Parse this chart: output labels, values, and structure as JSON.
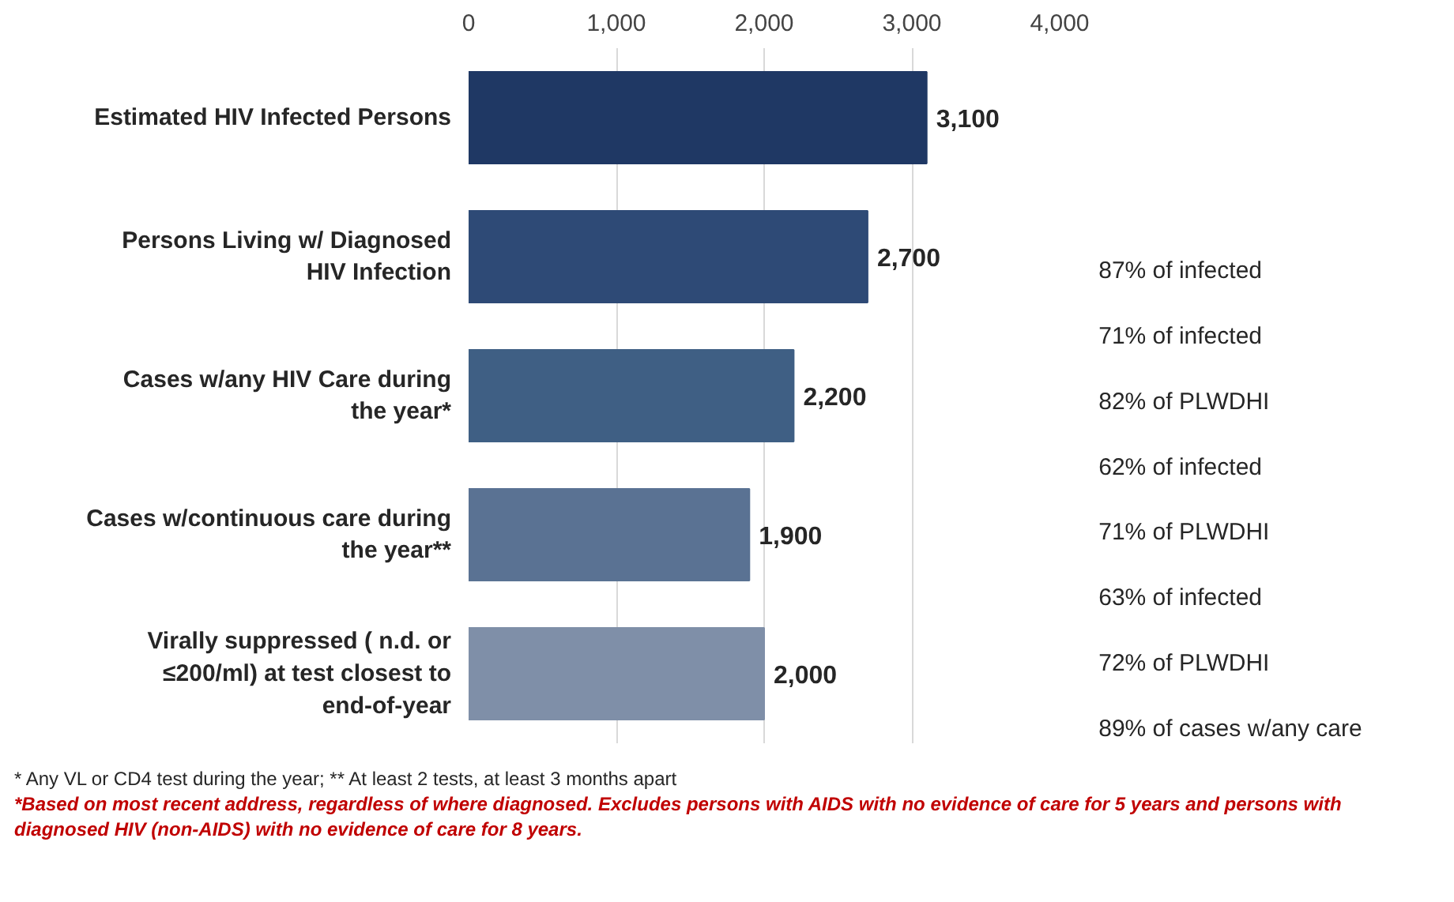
{
  "chart_data": {
    "type": "bar",
    "orientation": "horizontal",
    "categories": [
      "Estimated HIV Infected Persons",
      "Persons Living w/ Diagnosed HIV Infection",
      "Cases w/any HIV Care during the year*",
      "Cases w/continuous care during the year**",
      "Virally suppressed ( n.d. or ≤200/ml) at test closest to end-of-year"
    ],
    "values": [
      3100,
      2700,
      2200,
      1900,
      2000
    ],
    "colors": [
      "#1f3864",
      "#2e4a76",
      "#3f5f84",
      "#5a7293",
      "#7f8fa8"
    ],
    "xlim": [
      0,
      4000
    ],
    "xticks": [
      {
        "value": 0,
        "label": "0"
      },
      {
        "value": 1000,
        "label": "1,000"
      },
      {
        "value": 2000,
        "label": "2,000"
      },
      {
        "value": 3000,
        "label": "3,000"
      },
      {
        "value": 4000,
        "label": "4,000"
      }
    ],
    "grid": "x",
    "value_labels": [
      "3,100",
      "2,700",
      "2,200",
      "1,900",
      "2,000"
    ],
    "annotations": [
      "87% of infected",
      "71% of infected",
      "82% of PLWDHI",
      "62% of infected",
      "71% of PLWDHI",
      "63% of infected",
      "72% of PLWDHI",
      "89% of cases w/any care",
      "* Any VL or CD4 test during the year; ** At least 2 tests, at least 3 months apart",
      "*Based on most recent address, regardless of where diagnosed. Excludes persons with AIDS with no evidence of care for 5 years and persons with diagnosed HIV (non-AIDS) with no evidence of care for 8 years."
    ]
  }
}
